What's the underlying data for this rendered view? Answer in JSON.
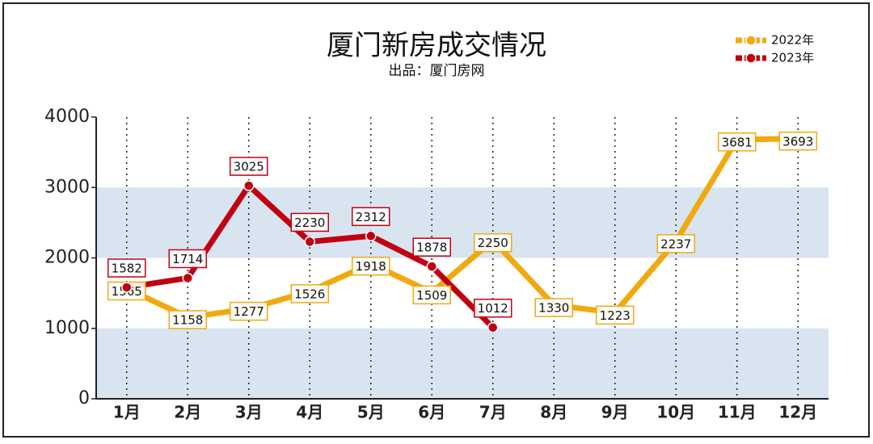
{
  "chart_data": {
    "type": "line",
    "title": "厦门新房成交情况",
    "subtitle": "出品：厦门房网",
    "categories": [
      "1月",
      "2月",
      "3月",
      "4月",
      "5月",
      "6月",
      "7月",
      "8月",
      "9月",
      "10月",
      "11月",
      "12月"
    ],
    "series": [
      {
        "name": "2022年",
        "color": "#f0aa10",
        "values": [
          1565,
          1158,
          1277,
          1526,
          1918,
          1509,
          2250,
          1330,
          1223,
          2237,
          3681,
          3693
        ]
      },
      {
        "name": "2023年",
        "color": "#c00010",
        "values": [
          1582,
          1714,
          3025,
          2230,
          2312,
          1878,
          1012,
          null,
          null,
          null,
          null,
          null
        ]
      }
    ],
    "ylim": [
      0,
      4000
    ],
    "yticks": [
      0,
      1000,
      2000,
      3000,
      4000
    ],
    "legend": "top-right"
  }
}
